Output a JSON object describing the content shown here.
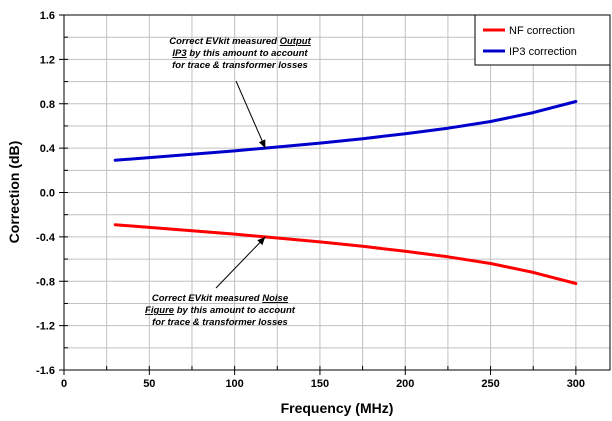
{
  "chart_data": {
    "type": "line",
    "title": "",
    "xlabel": "Frequency (MHz)",
    "ylabel": "Correction (dB)",
    "xlim": [
      0,
      320
    ],
    "ylim": [
      -1.6,
      1.6
    ],
    "xticks": [
      0,
      50,
      100,
      150,
      200,
      250,
      300
    ],
    "xtick_labels": [
      "0",
      "50",
      "100",
      "150",
      "200",
      "250",
      "300"
    ],
    "yticks": [
      -1.6,
      -1.2,
      -0.8,
      -0.4,
      0.0,
      0.4,
      0.8,
      1.2,
      1.6
    ],
    "ytick_labels": [
      "-1.6",
      "-1.2",
      "-0.8",
      "-0.4",
      "0.0",
      "0.4",
      "0.8",
      "1.2",
      "1.6"
    ],
    "grid": true,
    "legend_position": "top-right",
    "series": [
      {
        "name": "NF correction",
        "color": "#ff0000",
        "x": [
          30,
          50,
          75,
          100,
          125,
          150,
          175,
          200,
          225,
          250,
          275,
          300
        ],
        "y": [
          -0.29,
          -0.315,
          -0.345,
          -0.375,
          -0.41,
          -0.445,
          -0.485,
          -0.53,
          -0.58,
          -0.64,
          -0.72,
          -0.82
        ]
      },
      {
        "name": "IP3 correction",
        "color": "#0000cc",
        "x": [
          30,
          50,
          75,
          100,
          125,
          150,
          175,
          200,
          225,
          250,
          275,
          300
        ],
        "y": [
          0.29,
          0.315,
          0.345,
          0.375,
          0.41,
          0.445,
          0.485,
          0.53,
          0.58,
          0.64,
          0.72,
          0.82
        ]
      }
    ],
    "annotations": [
      {
        "lines": [
          [
            {
              "text": "Correct EVkit measured "
            },
            {
              "text": "Output",
              "underline": true
            }
          ],
          [
            {
              "text": "IP3",
              "underline": true
            },
            {
              "text": " by this amount to account"
            }
          ],
          [
            {
              "text": "for trace & transformer losses"
            }
          ]
        ],
        "target_series": 1,
        "target_x": 118,
        "target_y": 0.4
      },
      {
        "lines": [
          [
            {
              "text": "Correct EVkit measured "
            },
            {
              "text": "Noise",
              "underline": true
            }
          ],
          [
            {
              "text": "Figure",
              "underline": true
            },
            {
              "text": " by this amount to account"
            }
          ],
          [
            {
              "text": "for trace & transformer losses"
            }
          ]
        ],
        "target_series": 0,
        "target_x": 118,
        "target_y": -0.4
      }
    ]
  }
}
